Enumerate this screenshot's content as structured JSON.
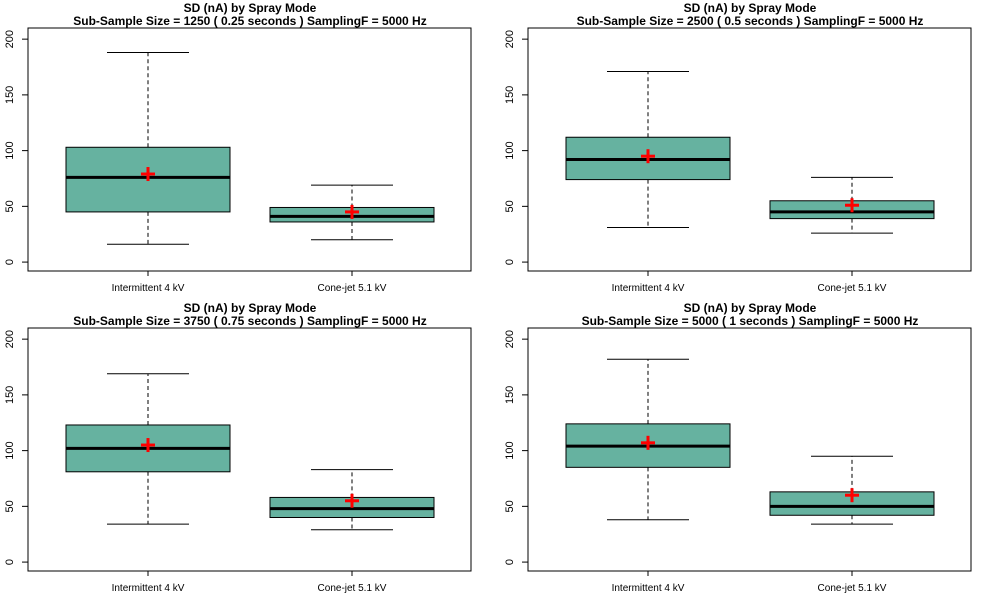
{
  "colors": {
    "box_fill": "#66b2a0",
    "mean_marker": "#ff0000",
    "axis": "#000000"
  },
  "chart_data": [
    {
      "type": "boxplot",
      "title": "SD (nA) by Spray Mode",
      "subtitle": "Sub-Sample Size =  1250  ( 0.25  seconds ) SamplingF =  5000  Hz",
      "categories": [
        "Intermittent 4 kV",
        "Cone-jet 5.1 kV"
      ],
      "yticks": [
        0,
        50,
        100,
        150,
        200
      ],
      "ylim": [
        -8,
        210
      ],
      "boxes": [
        {
          "whisker_low": 16,
          "q1": 45,
          "median": 76,
          "q3": 103,
          "whisker_high": 188,
          "mean": 79
        },
        {
          "whisker_low": 20,
          "q1": 36,
          "median": 41,
          "q3": 49,
          "whisker_high": 69,
          "mean": 45
        }
      ],
      "mean_marker": "red plus"
    },
    {
      "type": "boxplot",
      "title": "SD (nA) by Spray Mode",
      "subtitle": "Sub-Sample Size =  2500  ( 0.5  seconds ) SamplingF =  5000  Hz",
      "categories": [
        "Intermittent 4 kV",
        "Cone-jet 5.1 kV"
      ],
      "yticks": [
        0,
        50,
        100,
        150,
        200
      ],
      "ylim": [
        -8,
        210
      ],
      "boxes": [
        {
          "whisker_low": 31,
          "q1": 74,
          "median": 92,
          "q3": 112,
          "whisker_high": 171,
          "mean": 95
        },
        {
          "whisker_low": 26,
          "q1": 39,
          "median": 45,
          "q3": 55,
          "whisker_high": 76,
          "mean": 51
        }
      ],
      "mean_marker": "red plus"
    },
    {
      "type": "boxplot",
      "title": "SD (nA) by Spray Mode",
      "subtitle": "Sub-Sample Size =  3750  ( 0.75  seconds ) SamplingF =  5000  Hz",
      "categories": [
        "Intermittent 4 kV",
        "Cone-jet 5.1 kV"
      ],
      "yticks": [
        0,
        50,
        100,
        150,
        200
      ],
      "ylim": [
        -8,
        210
      ],
      "boxes": [
        {
          "whisker_low": 34,
          "q1": 81,
          "median": 102,
          "q3": 123,
          "whisker_high": 169,
          "mean": 105
        },
        {
          "whisker_low": 29,
          "q1": 40,
          "median": 48,
          "q3": 58,
          "whisker_high": 83,
          "mean": 55
        }
      ],
      "mean_marker": "red plus"
    },
    {
      "type": "boxplot",
      "title": "SD (nA) by Spray Mode",
      "subtitle": "Sub-Sample Size =  5000  ( 1  seconds ) SamplingF =  5000  Hz",
      "categories": [
        "Intermittent 4 kV",
        "Cone-jet 5.1 kV"
      ],
      "yticks": [
        0,
        50,
        100,
        150,
        200
      ],
      "ylim": [
        -8,
        210
      ],
      "boxes": [
        {
          "whisker_low": 38,
          "q1": 85,
          "median": 104,
          "q3": 124,
          "whisker_high": 182,
          "mean": 107
        },
        {
          "whisker_low": 34,
          "q1": 42,
          "median": 50,
          "q3": 63,
          "whisker_high": 95,
          "mean": 60
        }
      ],
      "mean_marker": "red plus"
    }
  ]
}
